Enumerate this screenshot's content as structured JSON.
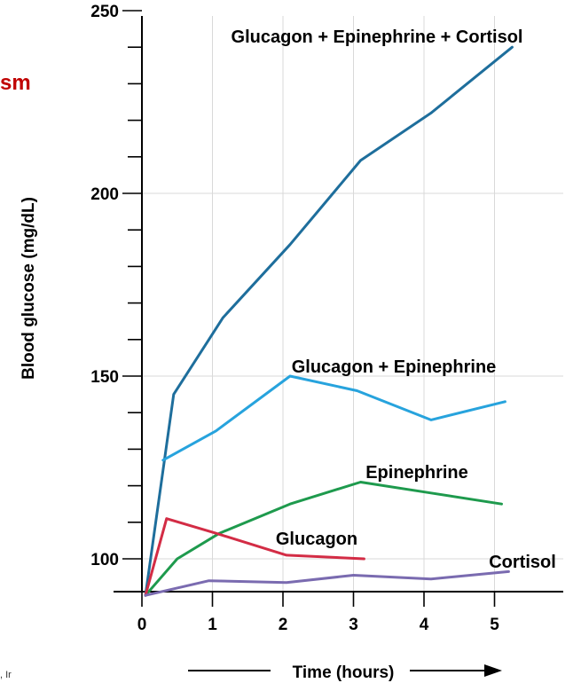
{
  "chart_data": {
    "type": "line",
    "xlabel": "Time (hours)",
    "ylabel": "Blood glucose (mg/dL)",
    "xlim": [
      0,
      6
    ],
    "ylim": [
      90,
      250
    ],
    "xticks": [
      0,
      1,
      2,
      3,
      4,
      5
    ],
    "yticks_labeled": [
      100,
      150,
      200,
      250
    ],
    "y_minor_step": 10,
    "grid": true,
    "series": [
      {
        "name": "Glucagon + Epinephrine + Cortisol",
        "color": "#1e6e9c",
        "x": [
          0.05,
          0.45,
          1.15,
          2.1,
          3.1,
          4.1,
          5.25
        ],
        "y": [
          90,
          145,
          166,
          186,
          209,
          222,
          240
        ]
      },
      {
        "name": "Glucagon + Epinephrine",
        "color": "#27a3dd",
        "x": [
          0.3,
          1.05,
          2.1,
          3.05,
          4.1,
          5.15
        ],
        "y": [
          127,
          135,
          150,
          146,
          138,
          143
        ]
      },
      {
        "name": "Epinephrine",
        "color": "#1e9a4d",
        "x": [
          0.05,
          0.5,
          1.1,
          2.1,
          3.1,
          4.1,
          5.1
        ],
        "y": [
          90,
          100,
          107,
          115,
          121,
          118,
          115
        ]
      },
      {
        "name": "Glucagon",
        "color": "#d32c45",
        "x": [
          0.05,
          0.35,
          1.05,
          2.05,
          3.15
        ],
        "y": [
          90,
          111,
          107,
          101,
          100
        ]
      },
      {
        "name": "Cortisol",
        "color": "#7a6bb0",
        "x": [
          0.05,
          0.95,
          2.05,
          3.0,
          4.1,
          5.2
        ],
        "y": [
          90,
          94,
          93.5,
          95.5,
          94.5,
          96.5
        ]
      }
    ]
  },
  "partial_texts": {
    "left_red": "sm",
    "bottom_left": ", Ir"
  }
}
